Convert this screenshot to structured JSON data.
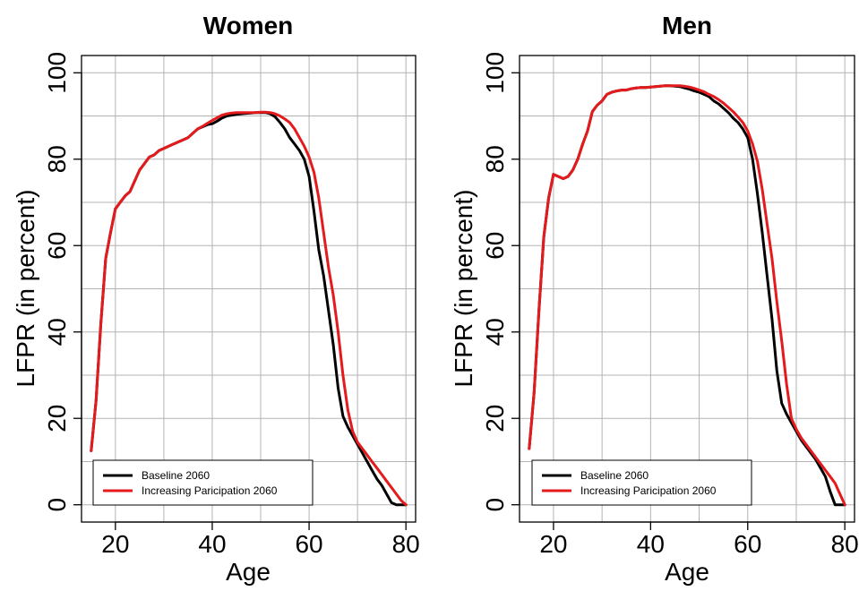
{
  "chart_data": [
    {
      "type": "line",
      "title": "Women",
      "xlabel": "Age",
      "ylabel": "LFPR (in percent)",
      "xlim": [
        13,
        82
      ],
      "ylim": [
        -4,
        104
      ],
      "x_ticks": [
        20,
        40,
        60,
        80
      ],
      "y_ticks": [
        0,
        20,
        40,
        60,
        80,
        100
      ],
      "x_grid": [
        20,
        30,
        40,
        50,
        60,
        70,
        80
      ],
      "y_grid": [
        0,
        10,
        20,
        30,
        40,
        50,
        60,
        70,
        80,
        90,
        100
      ],
      "grid": true,
      "legend_position": "bottom-left",
      "series": [
        {
          "name": "Baseline 2060",
          "color": "#000000",
          "points": [
            [
              15,
              12.5
            ],
            [
              16,
              24
            ],
            [
              17,
              42
            ],
            [
              18,
              57
            ],
            [
              19,
              63
            ],
            [
              20,
              68.5
            ],
            [
              21,
              70
            ],
            [
              22,
              71.5
            ],
            [
              23,
              72.5
            ],
            [
              24,
              75
            ],
            [
              25,
              77.5
            ],
            [
              26,
              79
            ],
            [
              27,
              80.5
            ],
            [
              28,
              81
            ],
            [
              29,
              82
            ],
            [
              30,
              82.5
            ],
            [
              31,
              83
            ],
            [
              32,
              83.5
            ],
            [
              33,
              84
            ],
            [
              34,
              84.5
            ],
            [
              35,
              85
            ],
            [
              36,
              86
            ],
            [
              37,
              87
            ],
            [
              38,
              87.5
            ],
            [
              39,
              88
            ],
            [
              40,
              88.2
            ],
            [
              41,
              88.8
            ],
            [
              42,
              89.5
            ],
            [
              43,
              90
            ],
            [
              44,
              90.2
            ],
            [
              45,
              90.4
            ],
            [
              46,
              90.5
            ],
            [
              47,
              90.6
            ],
            [
              48,
              90.7
            ],
            [
              49,
              90.8
            ],
            [
              50,
              90.8
            ],
            [
              51,
              90.8
            ],
            [
              52,
              90.5
            ],
            [
              53,
              89.8
            ],
            [
              54,
              88.5
            ],
            [
              55,
              87
            ],
            [
              56,
              85
            ],
            [
              57,
              83.5
            ],
            [
              58,
              82
            ],
            [
              59,
              80
            ],
            [
              60,
              76
            ],
            [
              61,
              68
            ],
            [
              62,
              59
            ],
            [
              63,
              53
            ],
            [
              64,
              45
            ],
            [
              65,
              37
            ],
            [
              66,
              27
            ],
            [
              67,
              20.5
            ],
            [
              68,
              18
            ],
            [
              69,
              16
            ],
            [
              70,
              14
            ],
            [
              71,
              12
            ],
            [
              72,
              10
            ],
            [
              73,
              8
            ],
            [
              74,
              6
            ],
            [
              75,
              4.5
            ],
            [
              76,
              2.5
            ],
            [
              77,
              0.5
            ],
            [
              78,
              0
            ],
            [
              79,
              0
            ],
            [
              80,
              0
            ]
          ]
        },
        {
          "name": "Increasing Paricipation 2060",
          "color": "#e41a1c",
          "points": [
            [
              15,
              12.5
            ],
            [
              16,
              24
            ],
            [
              17,
              42
            ],
            [
              18,
              57
            ],
            [
              19,
              63
            ],
            [
              20,
              68.5
            ],
            [
              21,
              70
            ],
            [
              22,
              71.5
            ],
            [
              23,
              72.5
            ],
            [
              24,
              75
            ],
            [
              25,
              77.5
            ],
            [
              26,
              79
            ],
            [
              27,
              80.5
            ],
            [
              28,
              81
            ],
            [
              29,
              82
            ],
            [
              30,
              82.5
            ],
            [
              31,
              83
            ],
            [
              32,
              83.5
            ],
            [
              33,
              84
            ],
            [
              34,
              84.5
            ],
            [
              35,
              85
            ],
            [
              36,
              86
            ],
            [
              37,
              87
            ],
            [
              38,
              87.6
            ],
            [
              39,
              88.3
            ],
            [
              40,
              89
            ],
            [
              41,
              89.6
            ],
            [
              42,
              90.2
            ],
            [
              43,
              90.5
            ],
            [
              44,
              90.7
            ],
            [
              45,
              90.8
            ],
            [
              46,
              90.8
            ],
            [
              47,
              90.8
            ],
            [
              48,
              90.8
            ],
            [
              49,
              90.8
            ],
            [
              50,
              90.9
            ],
            [
              51,
              90.9
            ],
            [
              52,
              90.8
            ],
            [
              53,
              90.5
            ],
            [
              54,
              90
            ],
            [
              55,
              89.3
            ],
            [
              56,
              88.5
            ],
            [
              57,
              87
            ],
            [
              58,
              85
            ],
            [
              59,
              83
            ],
            [
              60,
              80.5
            ],
            [
              61,
              77
            ],
            [
              62,
              71
            ],
            [
              63,
              63
            ],
            [
              64,
              55
            ],
            [
              65,
              48.5
            ],
            [
              66,
              40
            ],
            [
              67,
              30
            ],
            [
              68,
              22
            ],
            [
              69,
              17
            ],
            [
              70,
              14.5
            ],
            [
              71,
              13
            ],
            [
              72,
              11.5
            ],
            [
              73,
              10
            ],
            [
              74,
              8.5
            ],
            [
              75,
              7
            ],
            [
              76,
              5.5
            ],
            [
              77,
              4
            ],
            [
              78,
              2.5
            ],
            [
              79,
              1
            ],
            [
              80,
              0
            ]
          ]
        }
      ]
    },
    {
      "type": "line",
      "title": "Men",
      "xlabel": "Age",
      "ylabel": "LFPR (in percent)",
      "xlim": [
        13,
        82
      ],
      "ylim": [
        -4,
        104
      ],
      "x_ticks": [
        20,
        40,
        60,
        80
      ],
      "y_ticks": [
        0,
        20,
        40,
        60,
        80,
        100
      ],
      "x_grid": [
        20,
        30,
        40,
        50,
        60,
        70,
        80
      ],
      "y_grid": [
        0,
        10,
        20,
        30,
        40,
        50,
        60,
        70,
        80,
        90,
        100
      ],
      "grid": true,
      "legend_position": "bottom-left",
      "series": [
        {
          "name": "Baseline 2060",
          "color": "#000000",
          "points": [
            [
              15,
              13
            ],
            [
              16,
              26
            ],
            [
              17,
              45
            ],
            [
              18,
              62
            ],
            [
              19,
              71
            ],
            [
              20,
              76.5
            ],
            [
              21,
              76
            ],
            [
              22,
              75.5
            ],
            [
              23,
              76
            ],
            [
              24,
              77.5
            ],
            [
              25,
              80
            ],
            [
              26,
              83.5
            ],
            [
              27,
              86.5
            ],
            [
              28,
              91
            ],
            [
              29,
              92.5
            ],
            [
              30,
              93.5
            ],
            [
              31,
              95
            ],
            [
              32,
              95.5
            ],
            [
              33,
              95.8
            ],
            [
              34,
              96
            ],
            [
              35,
              96
            ],
            [
              36,
              96.3
            ],
            [
              37,
              96.5
            ],
            [
              38,
              96.6
            ],
            [
              39,
              96.6
            ],
            [
              40,
              96.7
            ],
            [
              41,
              96.8
            ],
            [
              42,
              96.9
            ],
            [
              43,
              97
            ],
            [
              44,
              97
            ],
            [
              45,
              96.9
            ],
            [
              46,
              96.8
            ],
            [
              47,
              96.5
            ],
            [
              48,
              96.2
            ],
            [
              49,
              95.8
            ],
            [
              50,
              95.5
            ],
            [
              51,
              95
            ],
            [
              52,
              94.5
            ],
            [
              53,
              93.5
            ],
            [
              54,
              92.8
            ],
            [
              55,
              91.8
            ],
            [
              56,
              90.8
            ],
            [
              57,
              89.5
            ],
            [
              58,
              88.5
            ],
            [
              59,
              87
            ],
            [
              60,
              85
            ],
            [
              61,
              80
            ],
            [
              62,
              72
            ],
            [
              63,
              63
            ],
            [
              64,
              53
            ],
            [
              65,
              43
            ],
            [
              66,
              31
            ],
            [
              67,
              23.5
            ],
            [
              68,
              21
            ],
            [
              69,
              19
            ],
            [
              70,
              17
            ],
            [
              71,
              15
            ],
            [
              72,
              13.5
            ],
            [
              73,
              12
            ],
            [
              74,
              10.5
            ],
            [
              75,
              8.5
            ],
            [
              76,
              6.5
            ],
            [
              77,
              3
            ],
            [
              78,
              0
            ],
            [
              79,
              0
            ],
            [
              80,
              0
            ]
          ]
        },
        {
          "name": "Increasing Paricipation 2060",
          "color": "#e41a1c",
          "points": [
            [
              15,
              13
            ],
            [
              16,
              26
            ],
            [
              17,
              45
            ],
            [
              18,
              62
            ],
            [
              19,
              71
            ],
            [
              20,
              76.5
            ],
            [
              21,
              76
            ],
            [
              22,
              75.5
            ],
            [
              23,
              76
            ],
            [
              24,
              77.5
            ],
            [
              25,
              80
            ],
            [
              26,
              83.5
            ],
            [
              27,
              86.5
            ],
            [
              28,
              91
            ],
            [
              29,
              92.5
            ],
            [
              30,
              93.5
            ],
            [
              31,
              95
            ],
            [
              32,
              95.5
            ],
            [
              33,
              95.8
            ],
            [
              34,
              96
            ],
            [
              35,
              96
            ],
            [
              36,
              96.3
            ],
            [
              37,
              96.5
            ],
            [
              38,
              96.6
            ],
            [
              39,
              96.6
            ],
            [
              40,
              96.7
            ],
            [
              41,
              96.8
            ],
            [
              42,
              96.9
            ],
            [
              43,
              97
            ],
            [
              44,
              97
            ],
            [
              45,
              97
            ],
            [
              46,
              97
            ],
            [
              47,
              96.9
            ],
            [
              48,
              96.7
            ],
            [
              49,
              96.4
            ],
            [
              50,
              96
            ],
            [
              51,
              95.6
            ],
            [
              52,
              95
            ],
            [
              53,
              94.5
            ],
            [
              54,
              93.8
            ],
            [
              55,
              93
            ],
            [
              56,
              92
            ],
            [
              57,
              91
            ],
            [
              58,
              89.8
            ],
            [
              59,
              88.5
            ],
            [
              60,
              86.5
            ],
            [
              61,
              83.5
            ],
            [
              62,
              79.5
            ],
            [
              63,
              73
            ],
            [
              64,
              65
            ],
            [
              65,
              57
            ],
            [
              66,
              47
            ],
            [
              67,
              38
            ],
            [
              68,
              28
            ],
            [
              69,
              20
            ],
            [
              70,
              17.5
            ],
            [
              71,
              15.5
            ],
            [
              72,
              14
            ],
            [
              73,
              12.5
            ],
            [
              74,
              11
            ],
            [
              75,
              9.5
            ],
            [
              76,
              8
            ],
            [
              77,
              6.5
            ],
            [
              78,
              5
            ],
            [
              79,
              2.5
            ],
            [
              80,
              0
            ]
          ]
        }
      ]
    }
  ]
}
